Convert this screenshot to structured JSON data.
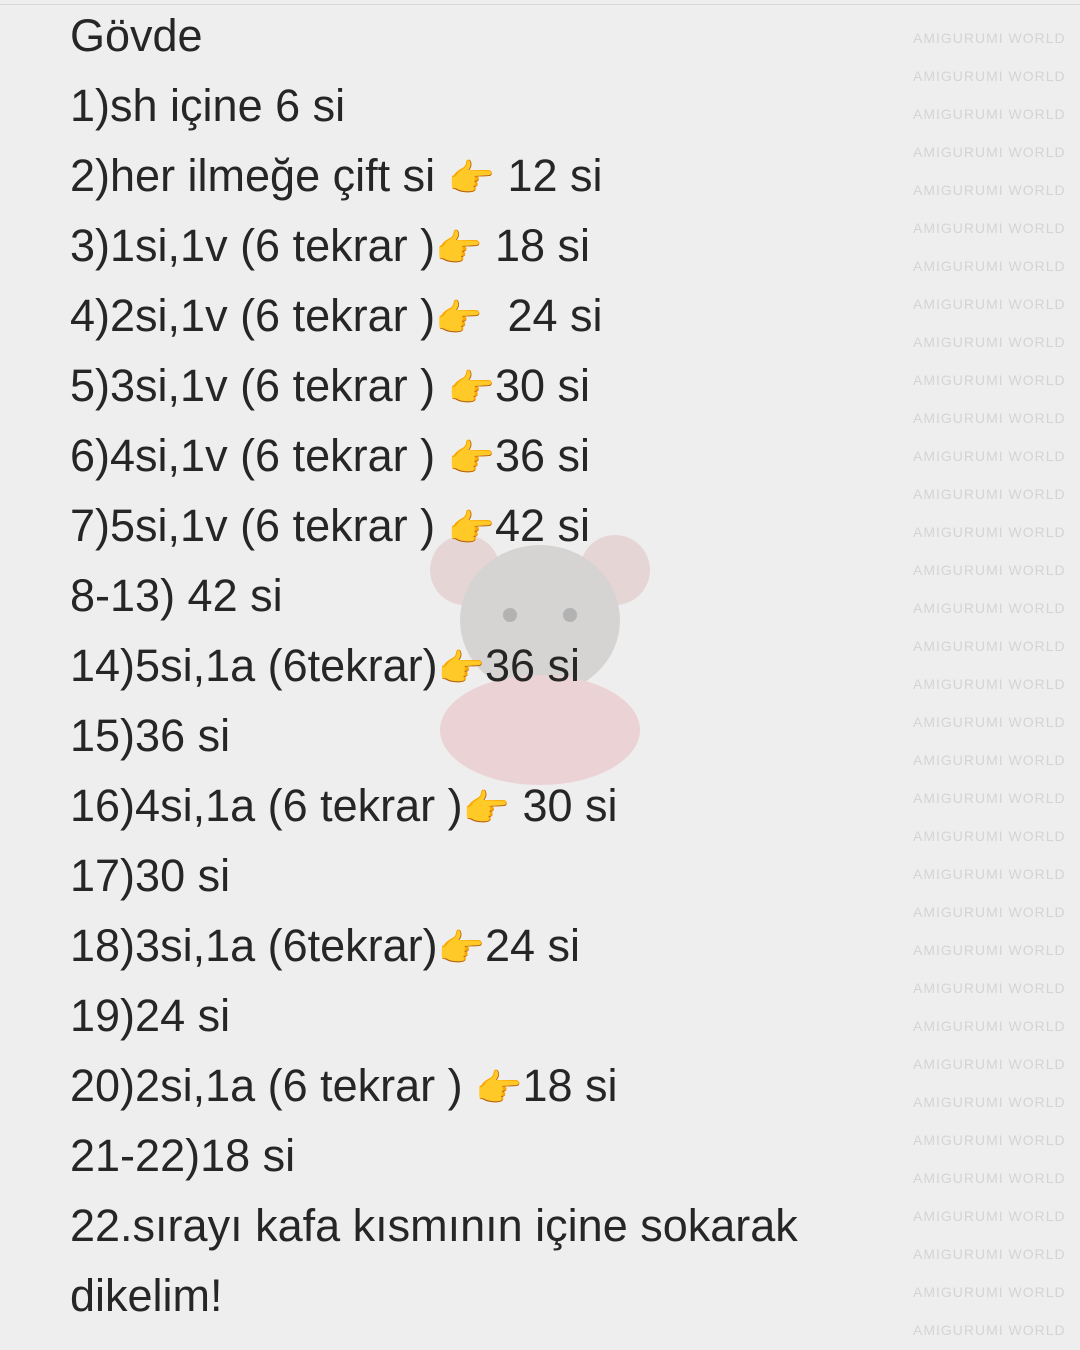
{
  "watermark": "AMIGURUMI WORLD",
  "note": {
    "lines": [
      {
        "text": "Gövde"
      },
      {
        "text": "1)sh içine 6 si"
      },
      {
        "text": "2)her ilmeğe çift si ",
        "emoji": "👉",
        "after": " 12 si"
      },
      {
        "text": "3)1si,1v (6 tekrar )",
        "emoji": "👉",
        "after": " 18 si"
      },
      {
        "text": "4)2si,1v (6 tekrar )",
        "emoji": "👉",
        "after": "  24 si"
      },
      {
        "text": "5)3si,1v (6 tekrar ) ",
        "emoji": "👉",
        "after": "30 si"
      },
      {
        "text": "6)4si,1v (6 tekrar ) ",
        "emoji": "👉",
        "after": "36 si"
      },
      {
        "text": "7)5si,1v (6 tekrar ) ",
        "emoji": "👉",
        "after": "42 si"
      },
      {
        "text": "8-13) 42 si"
      },
      {
        "text": "14)5si,1a (6tekrar)",
        "emoji": "👉",
        "after": "36 si"
      },
      {
        "text": "15)36 si"
      },
      {
        "text": "16)4si,1a (6 tekrar )",
        "emoji": "👉",
        "after": " 30 si"
      },
      {
        "text": "17)30 si"
      },
      {
        "text": "18)3si,1a (6tekrar)",
        "emoji": "👉",
        "after": "24 si"
      },
      {
        "text": "19)24 si"
      },
      {
        "text": "20)2si,1a (6 tekrar ) ",
        "emoji": "👉",
        "after": "18 si"
      },
      {
        "text": "21-22)18 si"
      },
      {
        "text": "22.sırayı kafa kısmının içine sokarak"
      },
      {
        "text": "dikelim!"
      }
    ]
  }
}
